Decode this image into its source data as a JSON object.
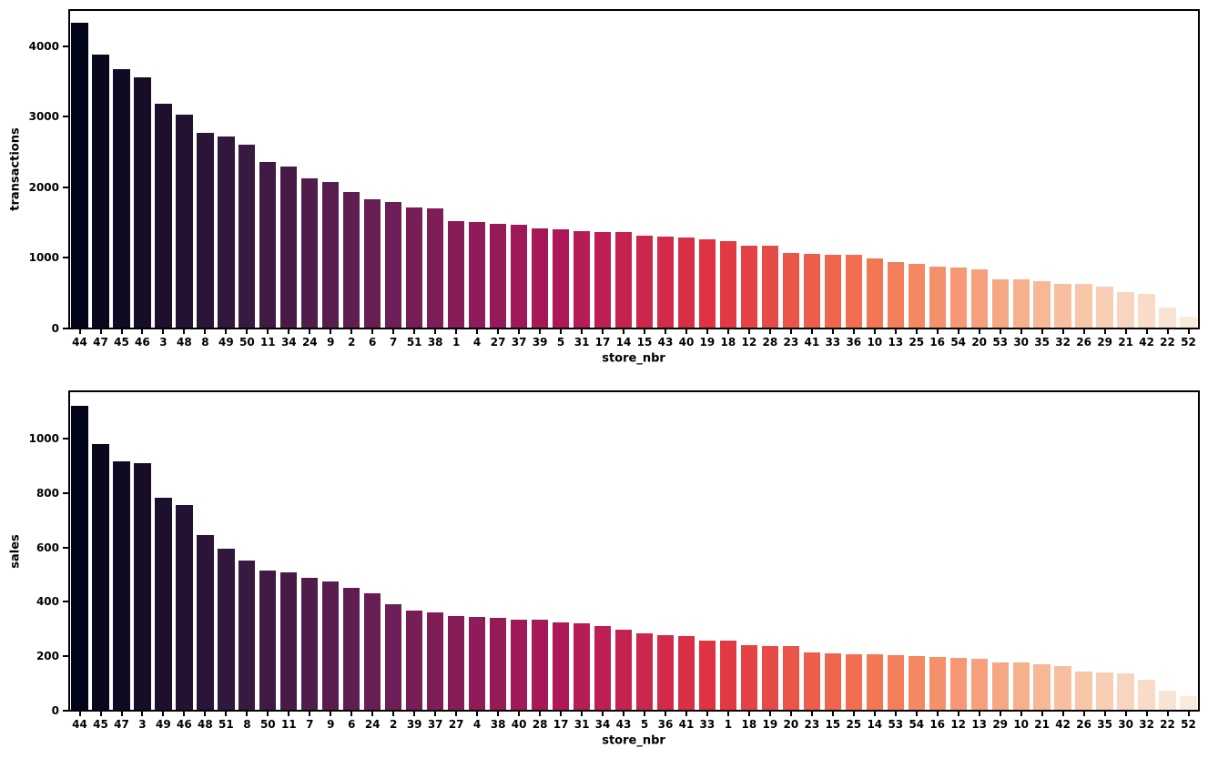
{
  "figure": {
    "background": "#ffffff",
    "description": "Two stacked bar charts: average transactions and sales per store, sorted descending"
  },
  "palette": {
    "name": "rocket",
    "anchors": [
      "#03051A",
      "#35193E",
      "#701F57",
      "#AD1759",
      "#E13342",
      "#F37651",
      "#F6B48F",
      "#FAEBDD"
    ]
  },
  "axis_style": {
    "spine_color": "#000000",
    "tick_color": "#000000",
    "text_color": "#000000"
  },
  "chart_data": [
    {
      "type": "bar",
      "title": "",
      "xlabel": "store_nbr",
      "ylabel": "transactions",
      "ylim": [
        0,
        4500
      ],
      "yticks": [
        0,
        1000,
        2000,
        3000,
        4000
      ],
      "grid": false,
      "legend": "none",
      "order": "descending",
      "categories": [
        "44",
        "47",
        "45",
        "46",
        "3",
        "48",
        "8",
        "49",
        "50",
        "11",
        "34",
        "24",
        "9",
        "2",
        "6",
        "7",
        "51",
        "38",
        "1",
        "4",
        "27",
        "37",
        "39",
        "5",
        "31",
        "17",
        "14",
        "15",
        "43",
        "40",
        "19",
        "18",
        "12",
        "28",
        "23",
        "41",
        "33",
        "36",
        "10",
        "13",
        "25",
        "16",
        "54",
        "20",
        "53",
        "30",
        "35",
        "32",
        "26",
        "29",
        "21",
        "42",
        "22",
        "52"
      ],
      "values": [
        4330,
        3880,
        3675,
        3560,
        3190,
        3030,
        2770,
        2720,
        2600,
        2355,
        2300,
        2125,
        2080,
        1935,
        1830,
        1795,
        1710,
        1705,
        1523,
        1515,
        1478,
        1472,
        1420,
        1406,
        1374,
        1364,
        1361,
        1322,
        1298,
        1294,
        1261,
        1233,
        1171,
        1168,
        1065,
        1056,
        1043,
        1040,
        990,
        940,
        913,
        871,
        867,
        840,
        700,
        694,
        676,
        634,
        629,
        590,
        511,
        489,
        298,
        170
      ]
    },
    {
      "type": "bar",
      "title": "",
      "xlabel": "store_nbr",
      "ylabel": "sales",
      "ylim": [
        0,
        1170
      ],
      "yticks": [
        0,
        200,
        400,
        600,
        800,
        1000
      ],
      "grid": false,
      "legend": "none",
      "order": "descending",
      "categories": [
        "44",
        "45",
        "47",
        "3",
        "49",
        "46",
        "48",
        "51",
        "8",
        "50",
        "11",
        "7",
        "9",
        "6",
        "24",
        "2",
        "39",
        "37",
        "27",
        "4",
        "38",
        "40",
        "28",
        "17",
        "31",
        "34",
        "43",
        "5",
        "36",
        "41",
        "33",
        "1",
        "18",
        "19",
        "20",
        "23",
        "15",
        "25",
        "14",
        "53",
        "54",
        "16",
        "12",
        "13",
        "29",
        "10",
        "21",
        "42",
        "26",
        "35",
        "30",
        "32",
        "22",
        "52"
      ],
      "values": [
        1120,
        981,
        917,
        908,
        782,
        755,
        647,
        596,
        551,
        516,
        509,
        488,
        476,
        453,
        431,
        392,
        368,
        361,
        347,
        343,
        341,
        335,
        333,
        326,
        322,
        310,
        297,
        283,
        279,
        274,
        258,
        256,
        240,
        237,
        236,
        214,
        211,
        209,
        206,
        203,
        201,
        198,
        195,
        190,
        177,
        176,
        169,
        163,
        144,
        140,
        137,
        114,
        75,
        53
      ]
    }
  ]
}
